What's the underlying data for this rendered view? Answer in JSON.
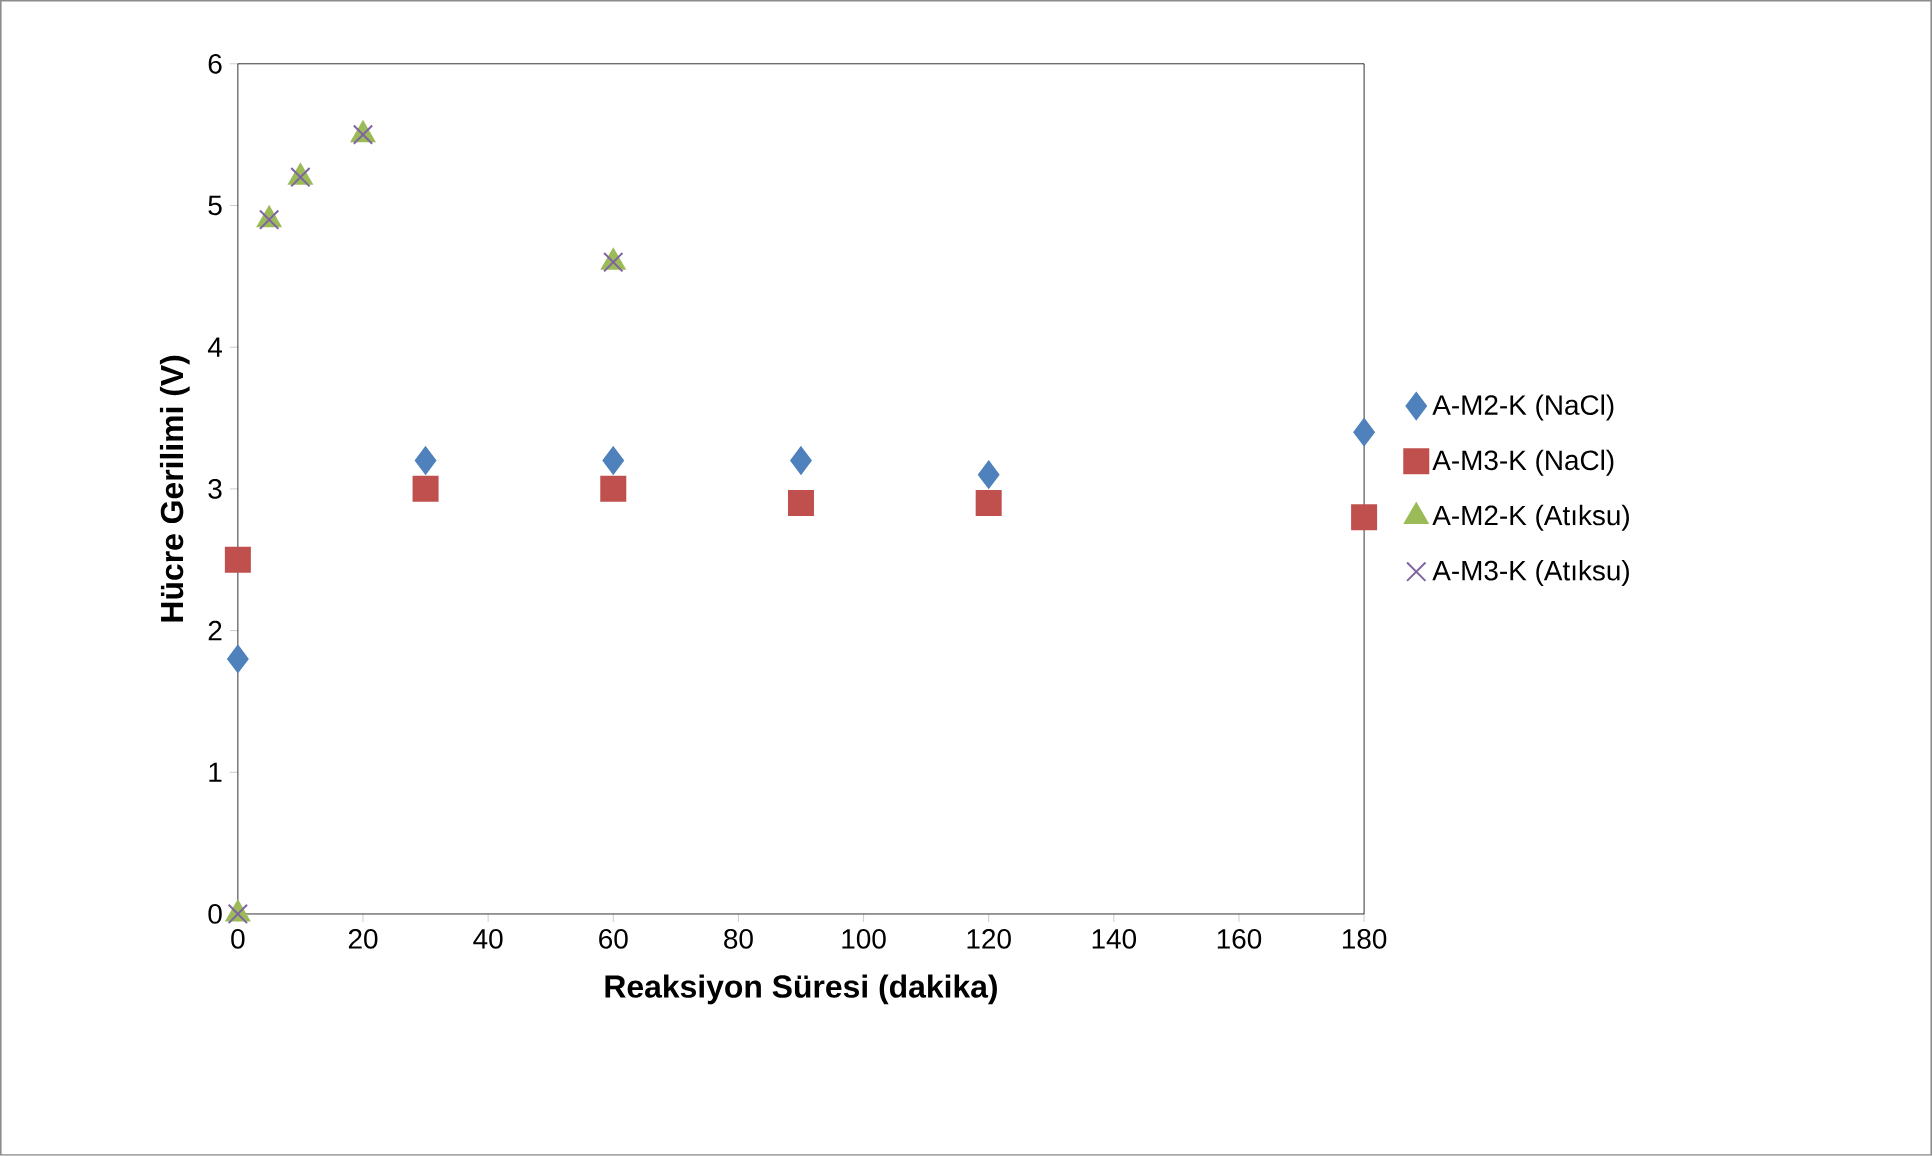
{
  "chart_data": {
    "type": "scatter",
    "xlabel": "Reaksiyon Süresi (dakika)",
    "ylabel": "Hücre Gerilimi (V)",
    "xlim": [
      0,
      180
    ],
    "xticks": [
      0,
      20,
      40,
      60,
      80,
      100,
      120,
      140,
      160,
      180
    ],
    "ylim": [
      0,
      6
    ],
    "yticks": [
      0,
      1,
      2,
      3,
      4,
      5,
      6
    ],
    "grid": false,
    "legend": "right",
    "series": [
      {
        "name": "A-M2-K (NaCl)",
        "color": "#4f81bd",
        "marker": "diamond",
        "x": [
          0,
          30,
          60,
          90,
          120,
          180
        ],
        "values": [
          1.8,
          3.2,
          3.2,
          3.2,
          3.1,
          3.4
        ]
      },
      {
        "name": "A-M3-K (NaCl)",
        "color": "#c0504d",
        "marker": "square",
        "x": [
          0,
          30,
          60,
          90,
          120,
          180
        ],
        "values": [
          2.5,
          3.0,
          3.0,
          2.9,
          2.9,
          2.8
        ]
      },
      {
        "name": "A-M2-K (Atıksu)",
        "color": "#9bbb59",
        "marker": "triangle",
        "x": [
          0,
          5,
          10,
          20,
          60
        ],
        "values": [
          0,
          4.9,
          5.2,
          5.5,
          4.6
        ]
      },
      {
        "name": "A-M3-K (Atıksu)",
        "color": "#8064a2",
        "marker": "cross",
        "x": [
          0,
          5,
          10,
          20,
          60
        ],
        "values": [
          0,
          4.9,
          5.2,
          5.5,
          4.6
        ]
      }
    ]
  }
}
